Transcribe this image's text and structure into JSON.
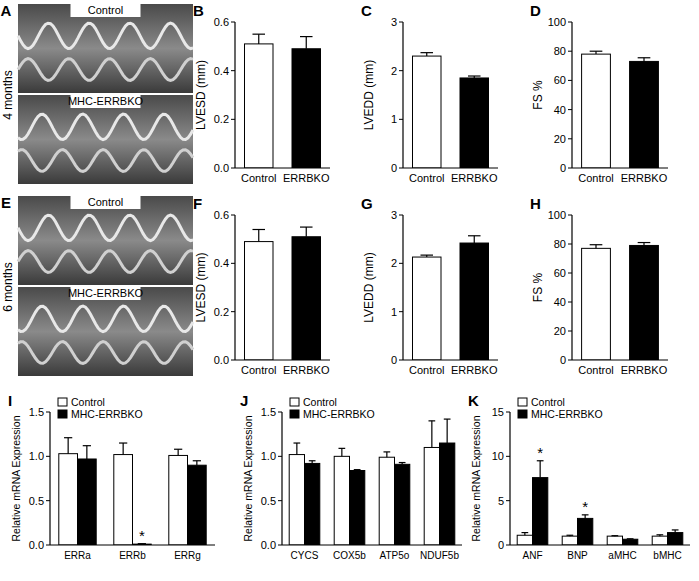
{
  "echo_panels": [
    {
      "letter": "A",
      "time": "4 months",
      "top_label": "Control",
      "bottom_label": "MHC-ERRBKO"
    },
    {
      "letter": "E",
      "time": "6 months",
      "top_label": "Control",
      "bottom_label": "MHC-ERRBKO"
    }
  ],
  "chart_data": [
    {
      "type": "bar",
      "y_label": "LVESD (mm)",
      "categories": [
        "Control",
        "ERRBKO"
      ],
      "values": [
        0.51,
        0.49
      ],
      "errors": [
        0.04,
        0.05
      ],
      "colors": [
        "#ffffff",
        "#000000"
      ],
      "ylim": [
        0,
        0.6
      ],
      "yticks": [
        {
          "value": 0,
          "label": "0.0"
        },
        {
          "value": 0.2,
          "label": "0.2"
        },
        {
          "value": 0.4,
          "label": "0.4"
        },
        {
          "value": 0.6,
          "label": "0.6"
        }
      ],
      "annotations": [
        {
          "text": "B"
        }
      ]
    },
    {
      "type": "bar",
      "y_label": "LVEDD (mm)",
      "categories": [
        "Control",
        "ERRBKO"
      ],
      "values": [
        2.3,
        1.85
      ],
      "errors": [
        0.07,
        0.04
      ],
      "colors": [
        "#ffffff",
        "#000000"
      ],
      "ylim": [
        0,
        3
      ],
      "yticks": [
        0,
        1,
        2,
        3
      ],
      "annotations": [
        {
          "text": "C"
        }
      ]
    },
    {
      "type": "bar",
      "y_label": "FS %",
      "categories": [
        "Control",
        "ERRBKO"
      ],
      "values": [
        78,
        73
      ],
      "errors": [
        2,
        2.5
      ],
      "colors": [
        "#ffffff",
        "#000000"
      ],
      "ylim": [
        0,
        100
      ],
      "yticks": [
        0,
        20,
        40,
        60,
        80,
        100
      ],
      "annotations": [
        {
          "text": "D"
        }
      ]
    },
    {
      "type": "bar",
      "y_label": "LVESD (mm)",
      "categories": [
        "Control",
        "ERRBKO"
      ],
      "values": [
        0.49,
        0.51
      ],
      "errors": [
        0.05,
        0.04
      ],
      "colors": [
        "#ffffff",
        "#000000"
      ],
      "ylim": [
        0,
        0.6
      ],
      "yticks": [
        {
          "value": 0,
          "label": "0.0"
        },
        {
          "value": 0.2,
          "label": "0.2"
        },
        {
          "value": 0.4,
          "label": "0.4"
        },
        {
          "value": 0.6,
          "label": "0.6"
        }
      ],
      "annotations": [
        {
          "text": "F"
        }
      ]
    },
    {
      "type": "bar",
      "y_label": "LVEDD (mm)",
      "categories": [
        "Control",
        "ERRBKO"
      ],
      "values": [
        2.13,
        2.42
      ],
      "errors": [
        0.04,
        0.15
      ],
      "colors": [
        "#ffffff",
        "#000000"
      ],
      "ylim": [
        0,
        3
      ],
      "yticks": [
        0,
        1,
        2,
        3
      ],
      "annotations": [
        {
          "text": "G"
        }
      ]
    },
    {
      "type": "bar",
      "y_label": "FS %",
      "categories": [
        "Control",
        "ERRBKO"
      ],
      "values": [
        77,
        79
      ],
      "errors": [
        2.5,
        2
      ],
      "colors": [
        "#ffffff",
        "#000000"
      ],
      "ylim": [
        0,
        100
      ],
      "yticks": [
        0,
        20,
        40,
        60,
        80,
        100
      ],
      "annotations": [
        {
          "text": "H"
        }
      ]
    },
    {
      "type": "bar",
      "y_label": "Relative mRNA Expression",
      "categories": [
        "ERRa",
        "ERRb",
        "ERRg"
      ],
      "series": [
        {
          "name": "Control",
          "color": "#ffffff",
          "values": [
            1.03,
            1.02,
            1.01
          ],
          "errors": [
            0.18,
            0.13,
            0.07
          ]
        },
        {
          "name": "MHC-ERRBKO",
          "color": "#000000",
          "values": [
            0.97,
            0.01,
            0.9
          ],
          "errors": [
            0.15,
            0.005,
            0.05
          ]
        }
      ],
      "ylim": [
        0,
        1.5
      ],
      "yticks": [
        {
          "value": 0,
          "label": "0.0"
        },
        {
          "value": 0.5,
          "label": "0.5"
        },
        {
          "value": 1,
          "label": "1.0"
        },
        {
          "value": 1.5,
          "label": "1.5"
        }
      ],
      "legend": "top-left",
      "annotations": [
        {
          "text": "I"
        },
        {
          "text": "*",
          "series": 1,
          "category": 1
        }
      ]
    },
    {
      "type": "bar",
      "y_label": "Relative mRNA Expression",
      "categories": [
        "CYCS",
        "COX5b",
        "ATP5o",
        "NDUF5b"
      ],
      "series": [
        {
          "name": "Control",
          "color": "#ffffff",
          "values": [
            1.02,
            1.0,
            0.99,
            1.1
          ],
          "errors": [
            0.13,
            0.09,
            0.06,
            0.3
          ]
        },
        {
          "name": "MHC-ERRBKO",
          "color": "#000000",
          "values": [
            0.92,
            0.84,
            0.91,
            1.15
          ],
          "errors": [
            0.03,
            0.01,
            0.02,
            0.27
          ]
        }
      ],
      "ylim": [
        0,
        1.5
      ],
      "yticks": [
        {
          "value": 0,
          "label": "0.0"
        },
        {
          "value": 0.5,
          "label": "0.5"
        },
        {
          "value": 1,
          "label": "1.0"
        },
        {
          "value": 1.5,
          "label": "1.5"
        }
      ],
      "legend": "top-left",
      "annotations": [
        {
          "text": "J"
        }
      ]
    },
    {
      "type": "bar",
      "y_label": "Relative mRNA Expression",
      "categories": [
        "ANF",
        "BNP",
        "aMHC",
        "bMHC"
      ],
      "series": [
        {
          "name": "Control",
          "color": "#ffffff",
          "values": [
            1.1,
            1.0,
            1.0,
            1.0
          ],
          "errors": [
            0.3,
            0.1,
            0.05,
            0.15
          ]
        },
        {
          "name": "MHC-ERRBKO",
          "color": "#000000",
          "values": [
            7.6,
            3.0,
            0.65,
            1.4
          ],
          "errors": [
            1.9,
            0.4,
            0.05,
            0.3
          ]
        }
      ],
      "ylim": [
        0,
        15
      ],
      "yticks": [
        0,
        5,
        10,
        15
      ],
      "legend": "top-left",
      "annotations": [
        {
          "text": "K"
        },
        {
          "text": "*",
          "series": 1,
          "category": 0
        },
        {
          "text": "*",
          "series": 1,
          "category": 1
        }
      ]
    }
  ]
}
